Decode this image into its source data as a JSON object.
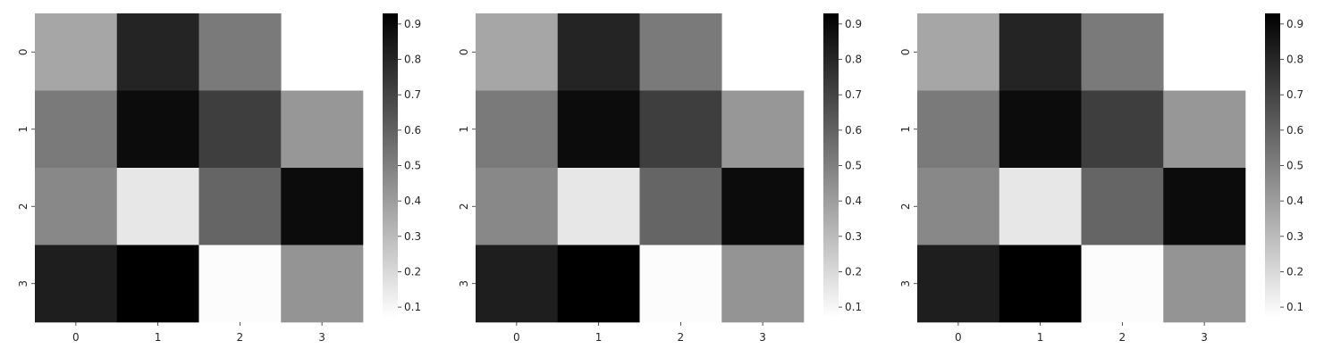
{
  "chart_data": [
    {
      "type": "heatmap",
      "title": "",
      "xlabel": "",
      "ylabel": "",
      "x_categories": [
        "0",
        "1",
        "2",
        "3"
      ],
      "y_categories": [
        "0",
        "1",
        "2",
        "3"
      ],
      "values": [
        [
          0.37,
          0.81,
          0.52,
          null
        ],
        [
          0.52,
          0.89,
          0.72,
          0.42
        ],
        [
          0.47,
          0.15,
          0.59,
          0.89
        ],
        [
          0.83,
          0.93,
          0.08,
          0.43
        ]
      ],
      "colormap": "Greys",
      "masked_cells": [
        [
          0,
          3
        ]
      ],
      "colorbar": {
        "range": [
          0.07,
          0.93
        ],
        "ticks": [
          "0.1",
          "0.2",
          "0.3",
          "0.4",
          "0.5",
          "0.6",
          "0.7",
          "0.8",
          "0.9"
        ]
      }
    },
    {
      "type": "heatmap",
      "title": "",
      "xlabel": "",
      "ylabel": "",
      "x_categories": [
        "0",
        "1",
        "2",
        "3"
      ],
      "y_categories": [
        "0",
        "1",
        "2",
        "3"
      ],
      "values": [
        [
          0.37,
          0.81,
          0.52,
          null
        ],
        [
          0.52,
          0.89,
          0.72,
          0.42
        ],
        [
          0.47,
          0.15,
          0.59,
          0.89
        ],
        [
          0.83,
          0.93,
          0.08,
          0.43
        ]
      ],
      "colormap": "Greys",
      "masked_cells": [
        [
          0,
          3
        ]
      ],
      "colorbar": {
        "range": [
          0.07,
          0.93
        ],
        "ticks": [
          "0.1",
          "0.2",
          "0.3",
          "0.4",
          "0.5",
          "0.6",
          "0.7",
          "0.8",
          "0.9"
        ]
      }
    },
    {
      "type": "heatmap",
      "title": "",
      "xlabel": "",
      "ylabel": "",
      "x_categories": [
        "0",
        "1",
        "2",
        "3"
      ],
      "y_categories": [
        "0",
        "1",
        "2",
        "3"
      ],
      "values": [
        [
          0.37,
          0.81,
          0.52,
          null
        ],
        [
          0.52,
          0.89,
          0.72,
          0.42
        ],
        [
          0.47,
          0.15,
          0.59,
          0.89
        ],
        [
          0.83,
          0.93,
          0.08,
          0.43
        ]
      ],
      "colormap": "Greys",
      "masked_cells": [
        [
          0,
          3
        ]
      ],
      "colorbar": {
        "range": [
          0.07,
          0.93
        ],
        "ticks": [
          "0.1",
          "0.2",
          "0.3",
          "0.4",
          "0.5",
          "0.6",
          "0.7",
          "0.8",
          "0.9"
        ]
      }
    }
  ]
}
